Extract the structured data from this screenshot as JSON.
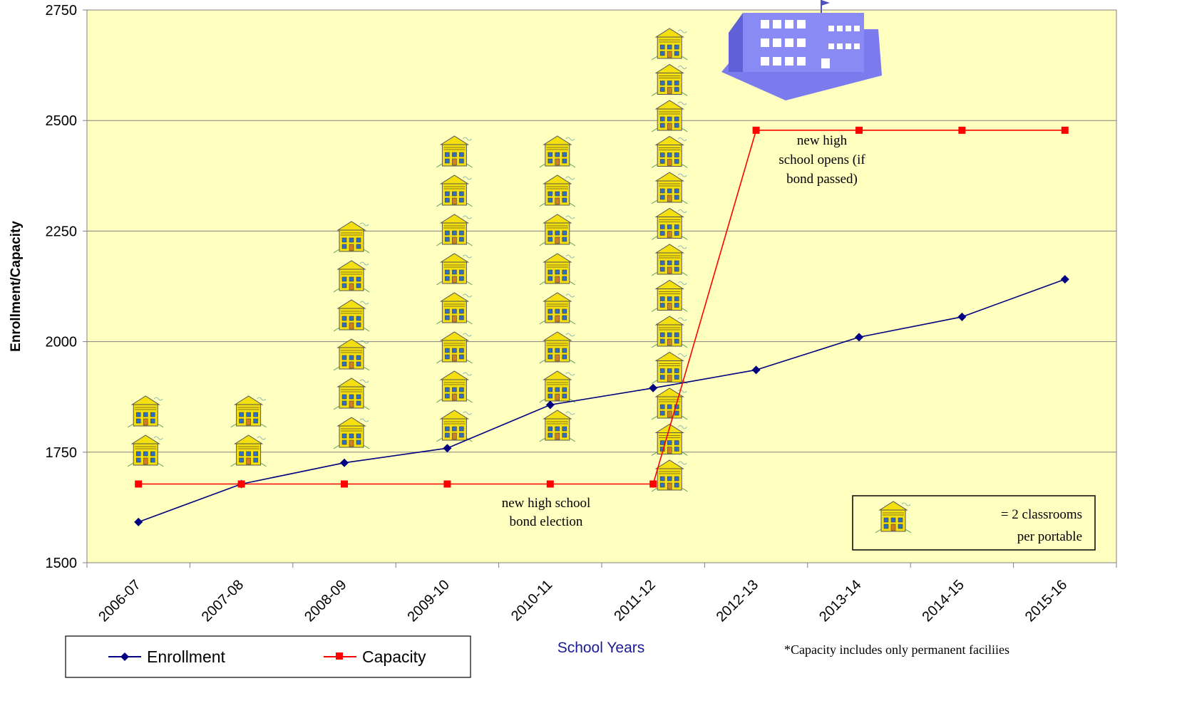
{
  "chart_data": {
    "type": "line",
    "categories": [
      "2006-07",
      "2007-08",
      "2008-09",
      "2009-10",
      "2010-11",
      "2011-12",
      "2012-13",
      "2013-14",
      "2014-15",
      "2015-16"
    ],
    "series": [
      {
        "name": "Enrollment",
        "color": "#000080",
        "marker": "diamond",
        "values": [
          1592,
          1678,
          1726,
          1759,
          1857,
          1895,
          1936,
          2010,
          2056,
          2141
        ]
      },
      {
        "name": "Capacity",
        "color": "#ff0000",
        "marker": "square",
        "values": [
          1678,
          1678,
          1678,
          1678,
          1678,
          1678,
          2478,
          2478,
          2478,
          2478
        ]
      }
    ],
    "xlabel": "School Years",
    "ylabel": "Enrollment/Capacity",
    "ylim": [
      1500,
      2750
    ],
    "yticks": [
      "1500",
      "1750",
      "2000",
      "2250",
      "2500",
      "2750"
    ],
    "grid": true,
    "plot_background": "#ffffc0",
    "legend_position": "bottom-left",
    "portables_per_year": [
      2,
      2,
      6,
      8,
      8,
      13,
      0,
      0,
      0,
      0
    ],
    "annotations": {
      "bond_election": [
        "new high school",
        "bond election"
      ],
      "school_opens": [
        "new high",
        "school opens (if",
        "bond passed)"
      ],
      "footnote": "*Capacity includes only permanent faciliies",
      "portable_key": [
        "= 2 classrooms",
        "per portable"
      ]
    },
    "icons": [
      "portable-classroom-icon",
      "high-school-building-icon"
    ]
  }
}
